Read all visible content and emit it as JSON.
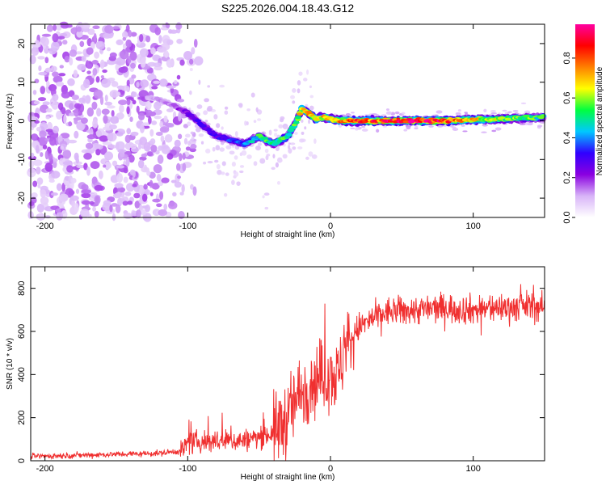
{
  "title": "S225.2026.004.18.43.G12",
  "chart_data": [
    {
      "type": "heatmap",
      "name": "spectrogram",
      "xlabel": "Height of straight line (km)",
      "ylabel": "Frequency (Hz)",
      "xlim": [
        -210,
        150
      ],
      "ylim": [
        -25,
        25
      ],
      "xticks": [
        -200,
        -100,
        0,
        100
      ],
      "yticks": [
        -20,
        -10,
        0,
        10,
        20
      ],
      "colorbar": {
        "label": "Normalized spectral amplitude",
        "range": [
          0,
          0.97
        ],
        "ticks": [
          0.0,
          0.2,
          0.4,
          0.6,
          0.8
        ],
        "tick_labels": [
          "0.0",
          "0.2",
          "0.4",
          "0.6",
          "0.8"
        ],
        "colors": [
          "#ffffff",
          "#d8b4f8",
          "#8a00e0",
          "#3000ff",
          "#00c8ff",
          "#00ff40",
          "#ffff00",
          "#ff8000",
          "#ff0000",
          "#ff00a0"
        ]
      },
      "ridge": {
        "x": [
          -125,
          -110,
          -100,
          -90,
          -80,
          -70,
          -60,
          -50,
          -40,
          -30,
          -25,
          -20,
          -15,
          -10,
          -5,
          0,
          10,
          20,
          40,
          60,
          80,
          100,
          120,
          140,
          150
        ],
        "freq": [
          6,
          4,
          2,
          -1,
          -4,
          -5,
          -6,
          -4,
          -6,
          -4,
          -1,
          3,
          2,
          0.5,
          1,
          0.5,
          0,
          0,
          0,
          0,
          0,
          0.3,
          0.5,
          0.8,
          1.0
        ],
        "amplitude": [
          0.12,
          0.15,
          0.25,
          0.3,
          0.3,
          0.35,
          0.4,
          0.5,
          0.55,
          0.5,
          0.55,
          0.7,
          0.8,
          0.75,
          0.7,
          0.7,
          0.75,
          0.8,
          0.85,
          0.9,
          0.85,
          0.7,
          0.6,
          0.55,
          0.5
        ]
      }
    },
    {
      "type": "line",
      "name": "snr",
      "xlabel": "Height of straight line (km)",
      "ylabel": "SNR (10 * v/v)",
      "xlim": [
        -210,
        150
      ],
      "ylim": [
        0,
        900
      ],
      "xticks": [
        -200,
        -100,
        0,
        100
      ],
      "yticks": [
        0,
        200,
        400,
        600,
        800
      ],
      "color": "#f03030",
      "trend": {
        "x": [
          -210,
          -150,
          -120,
          -105,
          -100,
          -90,
          -80,
          -60,
          -50,
          -40,
          -30,
          -20,
          -10,
          -5,
          0,
          5,
          10,
          20,
          30,
          40,
          60,
          80,
          100,
          120,
          140,
          150
        ],
        "y": [
          20,
          30,
          35,
          45,
          80,
          90,
          90,
          95,
          110,
          130,
          200,
          330,
          380,
          390,
          420,
          380,
          520,
          620,
          660,
          690,
          700,
          710,
          700,
          710,
          720,
          710
        ]
      }
    }
  ]
}
